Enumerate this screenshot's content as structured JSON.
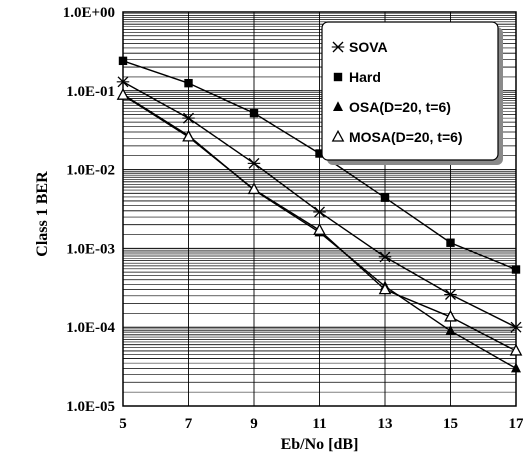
{
  "chart_data": {
    "type": "line",
    "title": "",
    "xlabel": "Eb/No [dB]",
    "ylabel": "Class 1 BER",
    "y_scale": "log",
    "xlim": [
      5,
      17
    ],
    "ylim": [
      1e-05,
      1
    ],
    "x_ticks": [
      "5",
      "7",
      "9",
      "11",
      "13",
      "15",
      "17"
    ],
    "y_ticks": [
      "1.0E+00",
      "1.0E-01",
      "1.0E-02",
      "1.0E-03",
      "1.0E-04",
      "1.0E-05"
    ],
    "grid": true,
    "legend_position": "top-right",
    "x": [
      5,
      7,
      9,
      11,
      13,
      15,
      17
    ],
    "series": [
      {
        "name": "SOVA",
        "marker": "x",
        "values": [
          0.13,
          0.045,
          0.012,
          0.0029,
          0.00078,
          0.00026,
          0.0001
        ]
      },
      {
        "name": "Hard",
        "marker": "square",
        "values": [
          0.24,
          0.125,
          0.052,
          0.016,
          0.0044,
          0.00118,
          0.00054
        ]
      },
      {
        "name": "OSA(D=20, t=6)",
        "marker": "triangle",
        "values": [
          0.09,
          0.027,
          0.0055,
          0.0016,
          0.00033,
          9e-05,
          3e-05
        ]
      },
      {
        "name": "MOSA(D=20, t=6)",
        "marker": "open-triangle",
        "values": [
          0.088,
          0.026,
          0.0056,
          0.0017,
          0.0003,
          0.000135,
          5e-05
        ]
      }
    ],
    "colors": {
      "line": "#000000",
      "grid": "#000000",
      "legend_shadow": "#8a8a8a"
    }
  }
}
